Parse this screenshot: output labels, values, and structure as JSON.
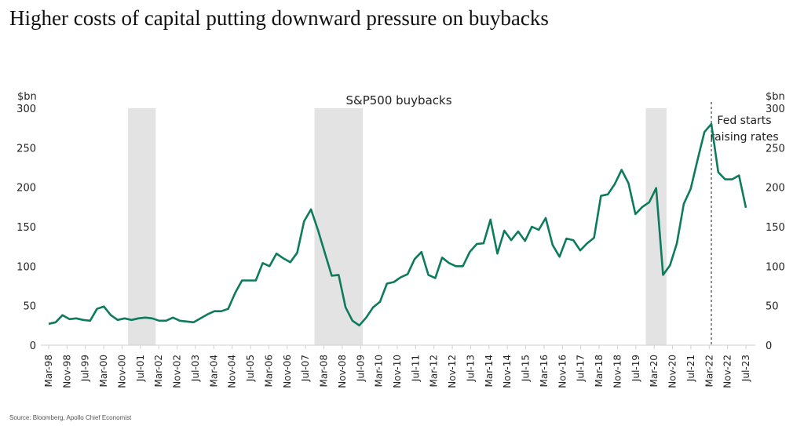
{
  "title": "Higher costs of capital putting downward pressure on buybacks",
  "source": "Source: Bloomberg, Apollo Chief Economist",
  "chart_data": {
    "type": "line",
    "title": "S&P500 buybacks",
    "ylabel_left": "$bn",
    "ylabel_right": "$bn",
    "ylim": [
      0,
      300
    ],
    "yticks": [
      0,
      50,
      100,
      150,
      200,
      250,
      300
    ],
    "grid": false,
    "frequency": "quarterly",
    "x_start": "1998-Q1",
    "x_end": "2023-Q2",
    "x_tick_labels": [
      "Mar-98",
      "Nov-98",
      "Jul-99",
      "Mar-00",
      "Nov-00",
      "Jul-01",
      "Mar-02",
      "Nov-02",
      "Jul-03",
      "Mar-04",
      "Nov-04",
      "Jul-05",
      "Mar-06",
      "Nov-06",
      "Jul-07",
      "Mar-08",
      "Nov-08",
      "Jul-09",
      "Mar-10",
      "Nov-10",
      "Jul-11",
      "Mar-12",
      "Nov-12",
      "Jul-13",
      "Mar-14",
      "Nov-14",
      "Jul-15",
      "Mar-16",
      "Nov-16",
      "Jul-17",
      "Mar-18",
      "Nov-18",
      "Jul-19",
      "Mar-20",
      "Nov-20",
      "Jul-21",
      "Mar-22",
      "Nov-22",
      "Jul-23"
    ],
    "series": [
      {
        "color": "#0e7b5c",
        "values": [
          27,
          29,
          38,
          33,
          34,
          32,
          31,
          46,
          49,
          38,
          32,
          34,
          32,
          34,
          35,
          34,
          31,
          31,
          35,
          31,
          30,
          29,
          34,
          39,
          43,
          43,
          46,
          66,
          82,
          82,
          82,
          104,
          100,
          116,
          110,
          105,
          117,
          157,
          172,
          146,
          117,
          88,
          89,
          48,
          31,
          25,
          35,
          48,
          55,
          78,
          80,
          86,
          90,
          109,
          118,
          89,
          85,
          111,
          104,
          100,
          100,
          118,
          128,
          129,
          159,
          116,
          145,
          133,
          144,
          132,
          150,
          146,
          161,
          127,
          112,
          135,
          133,
          120,
          129,
          136,
          189,
          191,
          204,
          222,
          205,
          166,
          175,
          181,
          199,
          89,
          101,
          129,
          179,
          198,
          235,
          270,
          280,
          219,
          210,
          210,
          215,
          174
        ]
      }
    ],
    "recessions": [
      {
        "start": "2001-Q1",
        "end": "2001-Q4"
      },
      {
        "start": "2007-Q4",
        "end": "2009-Q2"
      },
      {
        "start": "2019-Q4",
        "end": "2020-Q2"
      }
    ],
    "recession_color": "#e3e3e3",
    "annotation": {
      "at": "2022-Q1",
      "lines": [
        "Fed starts",
        "raising rates"
      ]
    }
  }
}
